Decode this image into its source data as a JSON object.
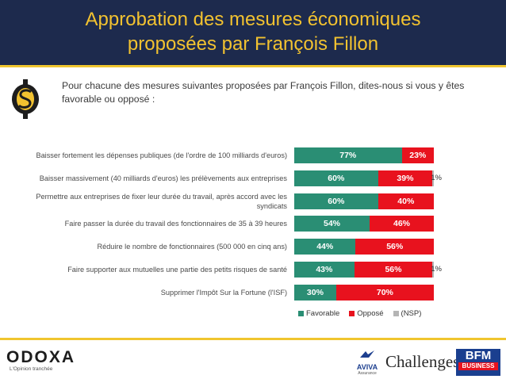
{
  "header": {
    "title_line1": "Approbation des mesures économiques",
    "title_line2": "proposées par François Fillon"
  },
  "question": "Pour chacune des mesures suivantes proposées par François Fillon, dites-nous si vous y êtes favorable ou opposé :",
  "chart_data": {
    "type": "bar",
    "orientation": "horizontal",
    "stacked": true,
    "categories": [
      "Baisser fortement les dépenses publiques (de l'ordre de 100 milliards d'euros)",
      "Baisser massivement (40 milliards d'euros) les prélèvements aux entreprises",
      "Permettre aux entreprises de fixer leur durée du travail, après accord avec les syndicats",
      "Faire passer la durée du travail des fonctionnaires de 35 à 39 heures",
      "Réduire le nombre de fonctionnaires (500 000 en cinq ans)",
      "Faire supporter aux mutuelles une partie des petits risques de santé",
      "Supprimer l'Impôt Sur la Fortune (l'ISF)"
    ],
    "series": [
      {
        "name": "Favorable",
        "color": "#2a8e74",
        "values": [
          77,
          60,
          60,
          54,
          44,
          43,
          30
        ],
        "labels": [
          "77%",
          "60%",
          "60%",
          "54%",
          "44%",
          "43%",
          "30%"
        ]
      },
      {
        "name": "Opposé",
        "color": "#e8121e",
        "values": [
          23,
          39,
          40,
          46,
          56,
          56,
          70
        ],
        "labels": [
          "23%",
          "39%",
          "40%",
          "46%",
          "56%",
          "56%",
          "70%"
        ]
      },
      {
        "name": "(NSP)",
        "color": "#b5b5b5",
        "values": [
          0,
          1,
          0,
          0,
          0,
          1,
          0
        ],
        "labels": [
          "",
          "1%",
          "",
          "",
          "",
          "1%",
          ""
        ]
      }
    ],
    "xlim": [
      0,
      100
    ],
    "legend_position": "bottom"
  },
  "footer": {
    "odoxa_name": "ODOXA",
    "odoxa_tagline": "L'Opinion tranchée",
    "aviva_name": "AVIVA",
    "aviva_sub": "Assurance",
    "challenges": "Challenges",
    "bfm_line1": "BFM",
    "bfm_line2": "BUSINESS"
  }
}
